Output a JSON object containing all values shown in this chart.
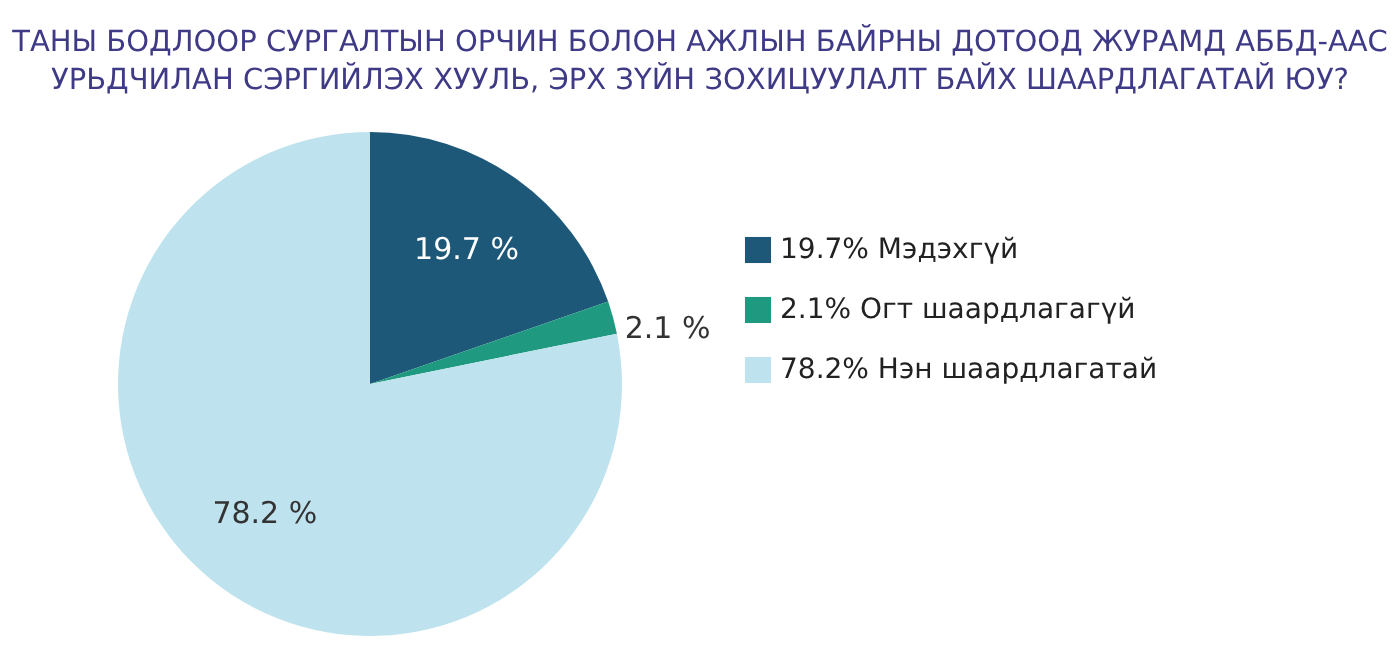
{
  "chart_data": {
    "type": "pie",
    "title": "ТАНЫ БОДЛООР СУРГАЛТЫН ОРЧИН БОЛОН АЖЛЫН БАЙРНЫ ДОТООД ЖУРАМД АББД-ААС\nУРЬДЧИЛАН СЭРГИЙЛЭХ  ХУУЛЬ, ЭРХ ЗҮЙН ЗОХИЦУУЛАЛТ БАЙХ ШААРДЛАГАТАЙ ЮУ?",
    "categories": [
      "19.7%  Мэдэхгүй",
      "2.1%    Огт шаардлагагүй",
      "78.2%  Нэн шаардлагатай"
    ],
    "values": [
      19.7,
      2.1,
      78.2
    ],
    "colors": [
      "#1d5878",
      "#1f9a80",
      "#bfe3ee"
    ],
    "value_labels": [
      "19.7 %",
      "2.1 %",
      "78.2 %"
    ],
    "legend": "right"
  }
}
